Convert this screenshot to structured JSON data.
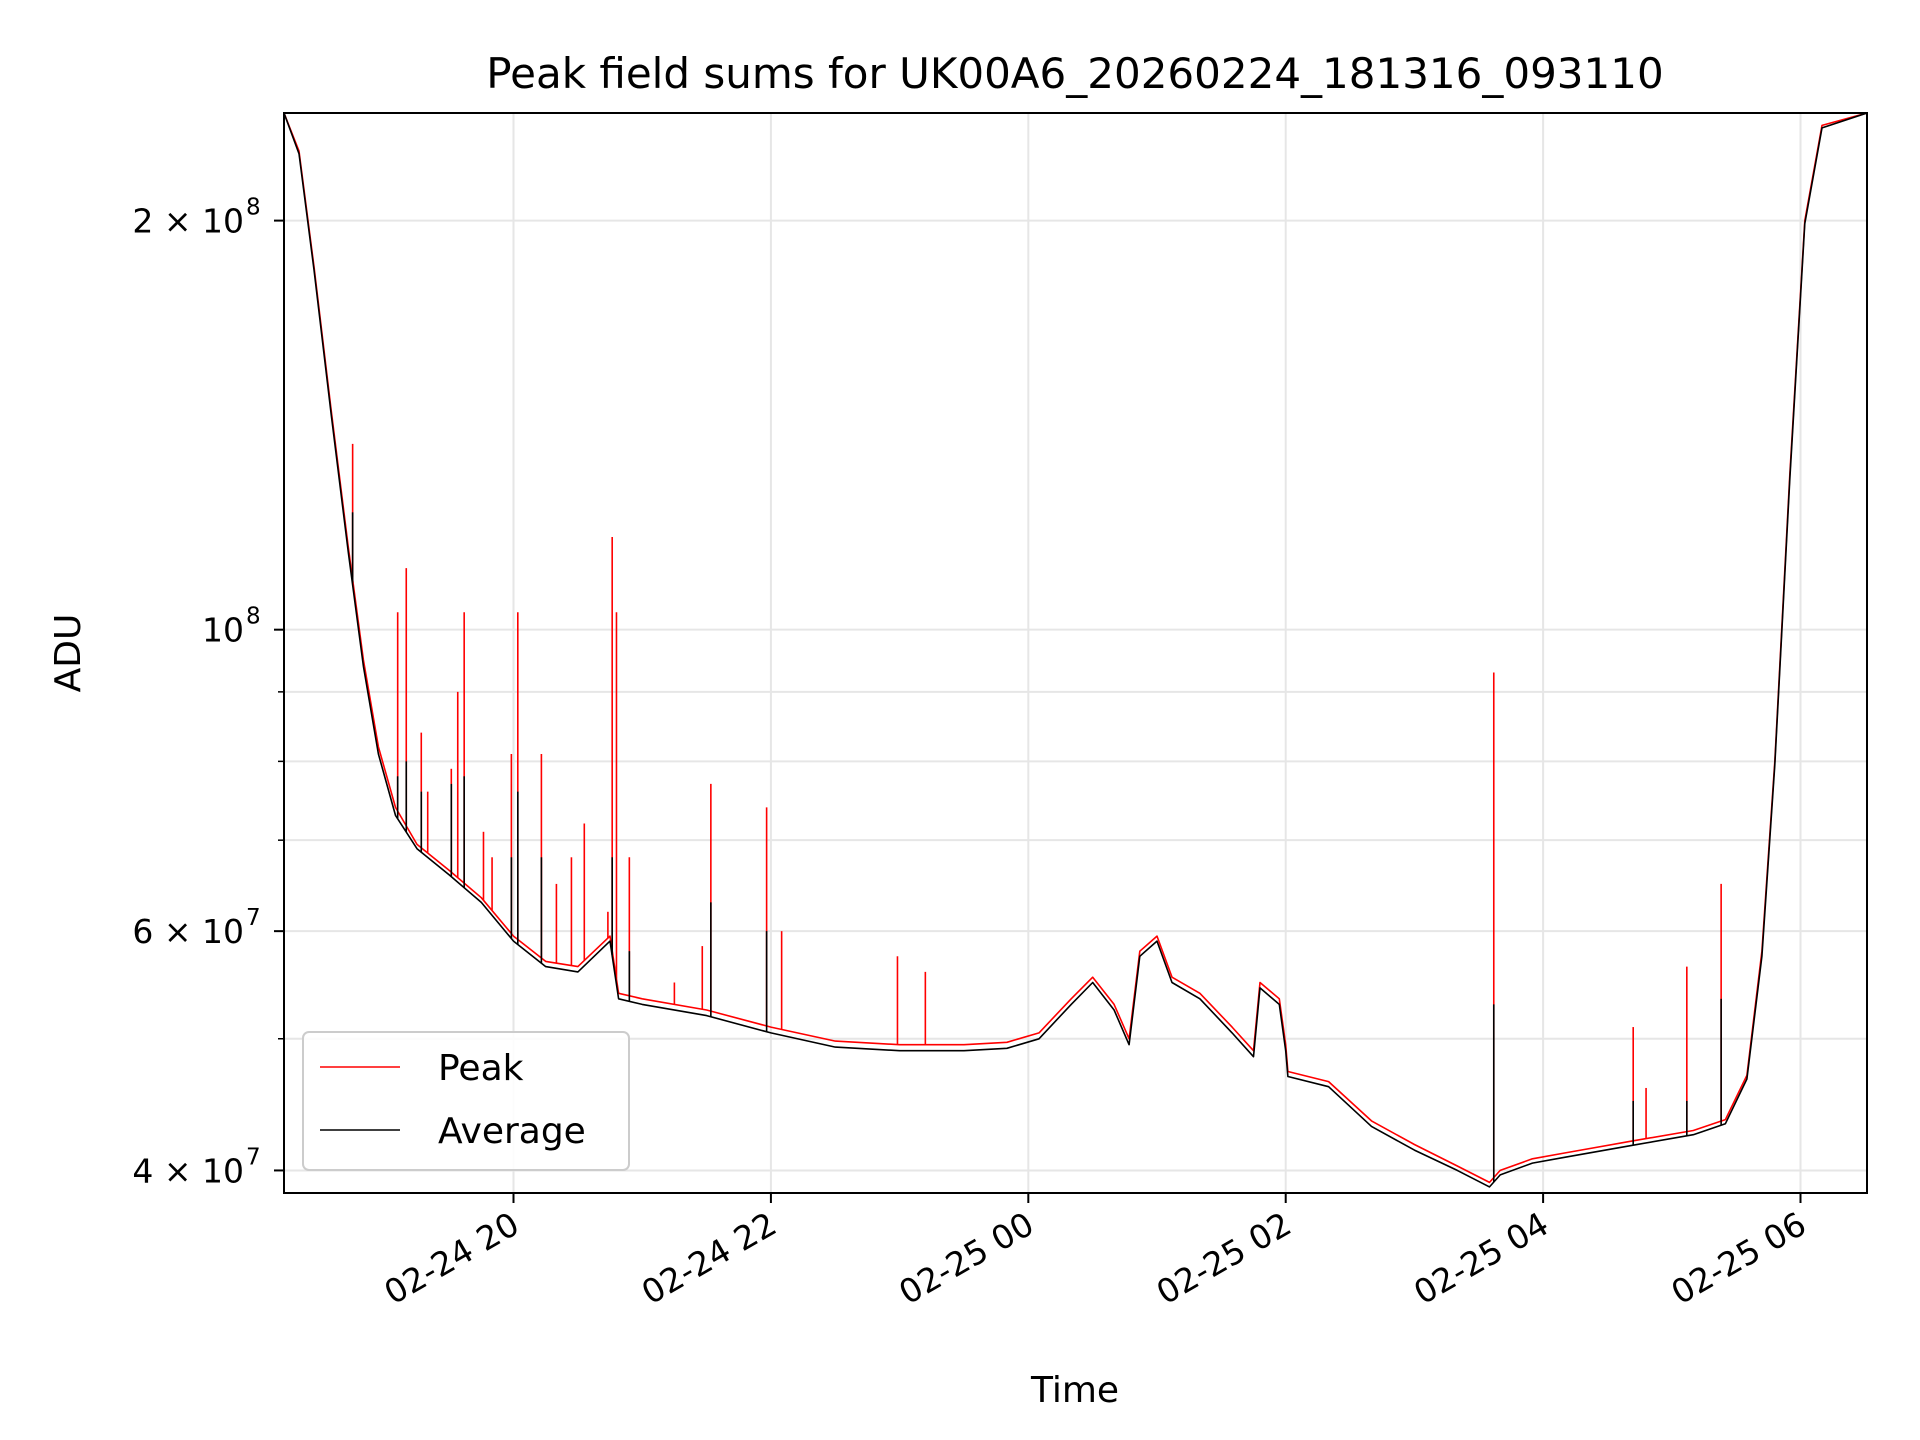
{
  "chart_data": {
    "type": "line",
    "title": "Peak field sums for UK00A6_20260224_181316_093110",
    "xlabel": "Time",
    "ylabel": "ADU",
    "yscale": "log",
    "xlim": [
      "2026-02-24 18:13",
      "2026-02-25 06:31"
    ],
    "ylim": [
      38500000,
      240000000
    ],
    "grid": true,
    "legend": "lower-left",
    "x_ticks": [
      {
        "time": "2026-02-24 20:00",
        "label": "02-24 20"
      },
      {
        "time": "2026-02-24 22:00",
        "label": "02-24 22"
      },
      {
        "time": "2026-02-25 00:00",
        "label": "02-25 00"
      },
      {
        "time": "2026-02-25 02:00",
        "label": "02-25 02"
      },
      {
        "time": "2026-02-25 04:00",
        "label": "02-25 04"
      },
      {
        "time": "2026-02-25 06:00",
        "label": "02-25 06"
      }
    ],
    "y_ticks": [
      {
        "value": 40000000,
        "label": "4×10⁷",
        "base": "4 × 10",
        "exp": "7"
      },
      {
        "value": 60000000,
        "label": "6×10⁷",
        "base": "6 × 10",
        "exp": "7"
      },
      {
        "value": 100000000,
        "label": "10⁸",
        "base": "10",
        "exp": "8"
      },
      {
        "value": 200000000,
        "label": "2×10⁸",
        "base": "2 × 10",
        "exp": "8"
      }
    ],
    "y_minor_ticks": [
      50000000,
      70000000,
      80000000,
      90000000,
      300000000
    ],
    "series": [
      {
        "name": "Peak",
        "color": "#ff0000",
        "baseline": [
          [
            "2026-02-24 18:13",
            240000000
          ],
          [
            "2026-02-24 18:20",
            225000000
          ],
          [
            "2026-02-24 18:27",
            185000000
          ],
          [
            "2026-02-24 18:35",
            145000000
          ],
          [
            "2026-02-24 18:43",
            115000000
          ],
          [
            "2026-02-24 18:50",
            95000000
          ],
          [
            "2026-02-24 18:57",
            82000000
          ],
          [
            "2026-02-24 19:05",
            74000000
          ],
          [
            "2026-02-24 19:15",
            69500000
          ],
          [
            "2026-02-24 19:30",
            66500000
          ],
          [
            "2026-02-24 19:45",
            63500000
          ],
          [
            "2026-02-24 20:00",
            59500000
          ],
          [
            "2026-02-24 20:15",
            57000000
          ],
          [
            "2026-02-24 20:30",
            56500000
          ],
          [
            "2026-02-24 20:45",
            59500000
          ],
          [
            "2026-02-24 20:49",
            54000000
          ],
          [
            "2026-02-24 21:00",
            53500000
          ],
          [
            "2026-02-24 21:30",
            52500000
          ],
          [
            "2026-02-24 22:00",
            51000000
          ],
          [
            "2026-02-24 22:30",
            49800000
          ],
          [
            "2026-02-24 23:00",
            49500000
          ],
          [
            "2026-02-24 23:30",
            49500000
          ],
          [
            "2026-02-24 23:50",
            49700000
          ],
          [
            "2026-02-25 00:05",
            50500000
          ],
          [
            "2026-02-25 00:20",
            53500000
          ],
          [
            "2026-02-25 00:30",
            55500000
          ],
          [
            "2026-02-25 00:40",
            53000000
          ],
          [
            "2026-02-25 00:47",
            50000000
          ],
          [
            "2026-02-25 00:52",
            58000000
          ],
          [
            "2026-02-25 01:00",
            59500000
          ],
          [
            "2026-02-25 01:07",
            55500000
          ],
          [
            "2026-02-25 01:20",
            54000000
          ],
          [
            "2026-02-25 01:35",
            51000000
          ],
          [
            "2026-02-25 01:45",
            49000000
          ],
          [
            "2026-02-25 01:48",
            55000000
          ],
          [
            "2026-02-25 01:57",
            53500000
          ],
          [
            "2026-02-25 02:00",
            49500000
          ],
          [
            "2026-02-25 02:01",
            47300000
          ],
          [
            "2026-02-25 02:20",
            46500000
          ],
          [
            "2026-02-25 02:40",
            43500000
          ],
          [
            "2026-02-25 03:00",
            41800000
          ],
          [
            "2026-02-25 03:20",
            40300000
          ],
          [
            "2026-02-25 03:35",
            39200000
          ],
          [
            "2026-02-25 03:40",
            40000000
          ],
          [
            "2026-02-25 03:55",
            40800000
          ],
          [
            "2026-02-25 04:10",
            41200000
          ],
          [
            "2026-02-25 04:40",
            42000000
          ],
          [
            "2026-02-25 05:10",
            42800000
          ],
          [
            "2026-02-25 05:25",
            43600000
          ],
          [
            "2026-02-25 05:35",
            47000000
          ],
          [
            "2026-02-25 05:42",
            58000000
          ],
          [
            "2026-02-25 05:48",
            80000000
          ],
          [
            "2026-02-25 05:55",
            130000000
          ],
          [
            "2026-02-25 06:02",
            200000000
          ],
          [
            "2026-02-25 06:10",
            235000000
          ],
          [
            "2026-02-25 06:31",
            240000000
          ]
        ],
        "spikes": [
          [
            "2026-02-24 18:45",
            137000000
          ],
          [
            "2026-02-24 19:06",
            103000000
          ],
          [
            "2026-02-24 19:10",
            111000000
          ],
          [
            "2026-02-24 19:17",
            84000000
          ],
          [
            "2026-02-24 19:20",
            76000000
          ],
          [
            "2026-02-24 19:31",
            79000000
          ],
          [
            "2026-02-24 19:34",
            90000000
          ],
          [
            "2026-02-24 19:37",
            103000000
          ],
          [
            "2026-02-24 19:46",
            71000000
          ],
          [
            "2026-02-24 19:50",
            68000000
          ],
          [
            "2026-02-24 19:59",
            81000000
          ],
          [
            "2026-02-24 20:02",
            103000000
          ],
          [
            "2026-02-24 20:13",
            81000000
          ],
          [
            "2026-02-24 20:20",
            65000000
          ],
          [
            "2026-02-24 20:27",
            68000000
          ],
          [
            "2026-02-24 20:33",
            72000000
          ],
          [
            "2026-02-24 20:44",
            62000000
          ],
          [
            "2026-02-24 20:46",
            117000000
          ],
          [
            "2026-02-24 20:48",
            103000000
          ],
          [
            "2026-02-24 20:54",
            68000000
          ],
          [
            "2026-02-24 21:15",
            55000000
          ],
          [
            "2026-02-24 21:28",
            58500000
          ],
          [
            "2026-02-24 21:32",
            77000000
          ],
          [
            "2026-02-24 21:58",
            74000000
          ],
          [
            "2026-02-24 22:05",
            60000000
          ],
          [
            "2026-02-24 22:59",
            57500000
          ],
          [
            "2026-02-24 23:12",
            56000000
          ],
          [
            "2026-02-25 03:37",
            93000000
          ],
          [
            "2026-02-25 04:42",
            51000000
          ],
          [
            "2026-02-25 04:48",
            46000000
          ],
          [
            "2026-02-25 05:07",
            56500000
          ],
          [
            "2026-02-25 05:23",
            65000000
          ]
        ]
      },
      {
        "name": "Average",
        "color": "#000000",
        "baseline": [
          [
            "2026-02-24 18:13",
            240000000
          ],
          [
            "2026-02-24 18:20",
            224000000
          ],
          [
            "2026-02-24 18:27",
            184000000
          ],
          [
            "2026-02-24 18:35",
            144000000
          ],
          [
            "2026-02-24 18:43",
            114000000
          ],
          [
            "2026-02-24 18:50",
            94000000
          ],
          [
            "2026-02-24 18:57",
            81000000
          ],
          [
            "2026-02-24 19:05",
            73000000
          ],
          [
            "2026-02-24 19:15",
            69000000
          ],
          [
            "2026-02-24 19:30",
            66000000
          ],
          [
            "2026-02-24 19:45",
            63000000
          ],
          [
            "2026-02-24 20:00",
            59000000
          ],
          [
            "2026-02-24 20:15",
            56500000
          ],
          [
            "2026-02-24 20:30",
            56000000
          ],
          [
            "2026-02-24 20:45",
            59000000
          ],
          [
            "2026-02-24 20:49",
            53500000
          ],
          [
            "2026-02-24 21:00",
            53000000
          ],
          [
            "2026-02-24 21:30",
            52000000
          ],
          [
            "2026-02-24 22:00",
            50500000
          ],
          [
            "2026-02-24 22:30",
            49300000
          ],
          [
            "2026-02-24 23:00",
            49000000
          ],
          [
            "2026-02-24 23:30",
            49000000
          ],
          [
            "2026-02-24 23:50",
            49200000
          ],
          [
            "2026-02-25 00:05",
            50000000
          ],
          [
            "2026-02-25 00:20",
            53000000
          ],
          [
            "2026-02-25 00:30",
            55000000
          ],
          [
            "2026-02-25 00:40",
            52500000
          ],
          [
            "2026-02-25 00:47",
            49500000
          ],
          [
            "2026-02-25 00:52",
            57500000
          ],
          [
            "2026-02-25 01:00",
            59000000
          ],
          [
            "2026-02-25 01:07",
            55000000
          ],
          [
            "2026-02-25 01:20",
            53500000
          ],
          [
            "2026-02-25 01:35",
            50500000
          ],
          [
            "2026-02-25 01:45",
            48500000
          ],
          [
            "2026-02-25 01:48",
            54500000
          ],
          [
            "2026-02-25 01:57",
            53000000
          ],
          [
            "2026-02-25 02:00",
            49000000
          ],
          [
            "2026-02-25 02:01",
            46900000
          ],
          [
            "2026-02-25 02:20",
            46100000
          ],
          [
            "2026-02-25 02:40",
            43100000
          ],
          [
            "2026-02-25 03:00",
            41400000
          ],
          [
            "2026-02-25 03:20",
            40000000
          ],
          [
            "2026-02-25 03:35",
            38900000
          ],
          [
            "2026-02-25 03:40",
            39700000
          ],
          [
            "2026-02-25 03:55",
            40500000
          ],
          [
            "2026-02-25 04:10",
            40900000
          ],
          [
            "2026-02-25 04:40",
            41700000
          ],
          [
            "2026-02-25 05:10",
            42500000
          ],
          [
            "2026-02-25 05:25",
            43300000
          ],
          [
            "2026-02-25 05:35",
            46700000
          ],
          [
            "2026-02-25 05:42",
            57500000
          ],
          [
            "2026-02-25 05:48",
            79500000
          ],
          [
            "2026-02-25 05:55",
            129000000
          ],
          [
            "2026-02-25 06:02",
            199000000
          ],
          [
            "2026-02-25 06:10",
            234000000
          ],
          [
            "2026-02-25 06:31",
            240000000
          ]
        ],
        "spikes": [
          [
            "2026-02-24 18:45",
            122000000
          ],
          [
            "2026-02-24 19:06",
            78000000
          ],
          [
            "2026-02-24 19:10",
            80000000
          ],
          [
            "2026-02-24 19:17",
            76000000
          ],
          [
            "2026-02-24 19:31",
            77000000
          ],
          [
            "2026-02-24 19:37",
            78000000
          ],
          [
            "2026-02-24 19:59",
            68000000
          ],
          [
            "2026-02-24 20:02",
            76000000
          ],
          [
            "2026-02-24 20:13",
            68000000
          ],
          [
            "2026-02-24 20:46",
            68000000
          ],
          [
            "2026-02-24 20:54",
            58000000
          ],
          [
            "2026-02-24 21:32",
            63000000
          ],
          [
            "2026-02-24 21:58",
            60000000
          ],
          [
            "2026-02-25 03:37",
            53000000
          ],
          [
            "2026-02-25 04:42",
            45000000
          ],
          [
            "2026-02-25 05:07",
            45000000
          ],
          [
            "2026-02-25 05:23",
            53500000
          ]
        ]
      }
    ]
  }
}
